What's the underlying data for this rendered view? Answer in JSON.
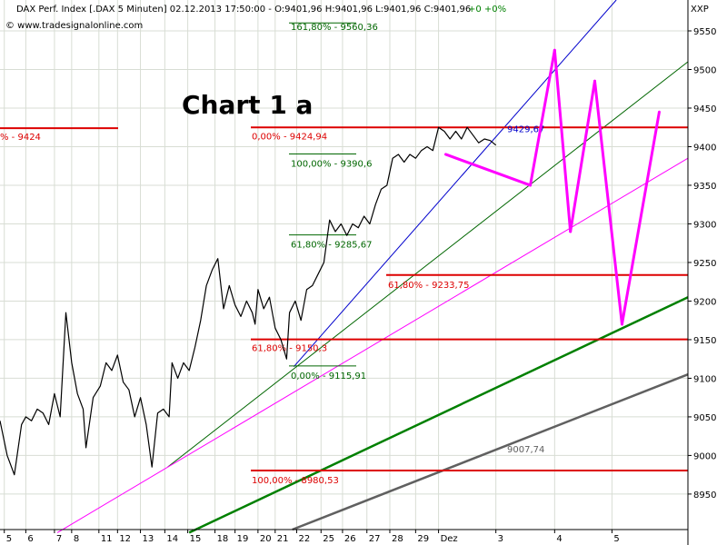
{
  "header": {
    "instrument": "DAX Perf. Index [.DAX  5 Minuten] 02.12.2013 17:50:00 - O:9401,96 H:9401,96 L:9401,96 C:9401,96",
    "change": "+0 +0%",
    "source": "© www.tradesignalonline.com",
    "axis_label": "XXP"
  },
  "colors": {
    "price": "#000000",
    "fib_red": "#dd0000",
    "fib_green": "#006600",
    "blue_trend": "#0000cc",
    "magenta": "#ff00ff",
    "grid": "#d8ddd4",
    "gray_trend": "#606060",
    "thick_green": "#008000"
  },
  "chart_data": {
    "type": "line",
    "title": "Chart 1 a",
    "y_axis": {
      "ticks": [
        8950,
        9000,
        9050,
        9100,
        9150,
        9200,
        9250,
        9300,
        9350,
        9400,
        9450,
        9500,
        9550
      ],
      "tick_labels": [
        "8950",
        "9000",
        "9050",
        "9100",
        "9150",
        "9200",
        "9250",
        "9300",
        "9350",
        "9400",
        "9450",
        "9500",
        "9550"
      ],
      "ylim": [
        8904,
        9590
      ]
    },
    "x_axis": {
      "ticks": [
        5,
        6,
        7,
        8,
        11,
        12,
        13,
        14,
        15,
        18,
        19,
        20,
        21,
        22,
        25,
        26,
        27,
        28,
        29,
        "Dez",
        3,
        4,
        5
      ],
      "tick_labels": [
        "5",
        "6",
        "7",
        "8",
        "11",
        "12",
        "13",
        "14",
        "15",
        "18",
        "19",
        "20",
        "21",
        "22",
        "25",
        "26",
        "27",
        "28",
        "29",
        "Dez",
        "3",
        "4",
        "5"
      ],
      "xlim": [
        0,
        48
      ]
    },
    "series": [
      {
        "role": "price",
        "x": [
          0,
          0.5,
          1.0,
          1.5,
          1.8,
          2.2,
          2.6,
          3.0,
          3.4,
          3.8,
          4.2,
          4.6,
          5.0,
          5.4,
          5.8,
          6.0,
          6.5,
          7.0,
          7.4,
          7.8,
          8.2,
          8.6,
          9.0,
          9.4,
          9.8,
          10.2,
          10.6,
          11.0,
          11.4,
          11.8,
          12.0,
          12.4,
          12.8,
          13.2,
          13.6,
          14.0,
          14.4,
          14.8,
          15.2,
          15.6,
          16.0,
          16.4,
          16.8,
          17.2,
          17.6,
          17.8,
          18.0,
          18.4,
          18.8,
          19.2,
          19.6,
          20.0,
          20.2,
          20.6,
          21.0,
          21.4,
          21.8,
          22.2,
          22.6,
          23.0,
          23.4,
          23.8,
          24.2,
          24.6,
          25.0,
          25.4,
          25.8,
          26.2,
          26.6,
          27.0,
          27.4,
          27.8,
          28.2,
          28.6,
          29.0,
          29.4,
          29.8,
          30.2,
          30.6,
          31.0,
          31.4,
          31.8,
          32.2,
          32.6,
          33.0,
          33.4,
          33.8,
          34.2,
          34.6
        ],
        "y": [
          9045,
          9000,
          8975,
          9040,
          9050,
          9045,
          9060,
          9055,
          9040,
          9080,
          9050,
          9185,
          9120,
          9080,
          9060,
          9010,
          9075,
          9090,
          9120,
          9110,
          9130,
          9095,
          9085,
          9050,
          9075,
          9040,
          8985,
          9055,
          9060,
          9050,
          9120,
          9100,
          9120,
          9110,
          9140,
          9175,
          9220,
          9240,
          9255,
          9190,
          9220,
          9195,
          9180,
          9200,
          9185,
          9170,
          9215,
          9190,
          9205,
          9165,
          9150,
          9125,
          9185,
          9200,
          9175,
          9215,
          9220,
          9235,
          9250,
          9305,
          9290,
          9300,
          9285,
          9300,
          9295,
          9310,
          9300,
          9325,
          9345,
          9350,
          9385,
          9390,
          9380,
          9390,
          9385,
          9395,
          9400,
          9395,
          9425,
          9420,
          9410,
          9420,
          9410,
          9425,
          9415,
          9405,
          9410,
          9408,
          9402
        ]
      }
    ],
    "fibonacci_levels": [
      {
        "label": "161,80% - 9560,36",
        "value": 9560.36,
        "color": "green"
      },
      {
        "label": "0,00% - 9424,94",
        "value": 9424.94,
        "color": "red"
      },
      {
        "label": "100,00% - 9390,6",
        "value": 9390.6,
        "color": "green"
      },
      {
        "label": "61,80% - 9285,67",
        "value": 9285.67,
        "color": "green"
      },
      {
        "label": "61,80% - 9233,75",
        "value": 9233.75,
        "color": "red"
      },
      {
        "label": "61,80% - 9150,3",
        "value": 9150.3,
        "color": "red"
      },
      {
        "label": "0,00% - 9115,91",
        "value": 9115.91,
        "color": "green"
      },
      {
        "label": "100,00% - 8980,53",
        "value": 8980.53,
        "color": "red"
      }
    ],
    "annotations": [
      {
        "label": "% - 9424",
        "value": 9424
      },
      {
        "label": "9429,67",
        "value": 9429.67
      },
      {
        "label": "9007,74",
        "value": 9007.74
      }
    ],
    "trendlines": [
      {
        "name": "blue",
        "points": [
          [
            20.5,
            9115
          ],
          [
            43,
            9590
          ]
        ]
      },
      {
        "name": "thin_green",
        "points": [
          [
            11.7,
            8985
          ],
          [
            48,
            9510
          ]
        ]
      },
      {
        "name": "magenta",
        "points": [
          [
            4,
            8900
          ],
          [
            48,
            9385
          ]
        ]
      },
      {
        "name": "thick_green",
        "points": [
          [
            13.2,
            8900
          ],
          [
            48,
            9205
          ]
        ]
      },
      {
        "name": "gray",
        "points": [
          [
            20.4,
            8904
          ],
          [
            48,
            9105
          ]
        ]
      }
    ],
    "projection_path": [
      [
        31.1,
        9390
      ],
      [
        37,
        9350
      ],
      [
        38.7,
        9525
      ],
      [
        39.8,
        9290
      ],
      [
        41.5,
        9485
      ],
      [
        43.4,
        9170
      ],
      [
        46.0,
        9445
      ]
    ],
    "grid": true
  }
}
